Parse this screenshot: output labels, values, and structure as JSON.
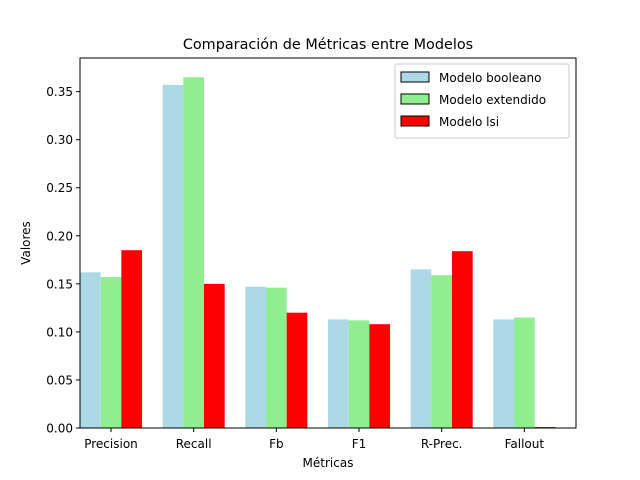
{
  "chart_data": {
    "type": "bar",
    "title": "Comparación de Métricas entre Modelos",
    "xlabel": "Métricas",
    "ylabel": "Valores",
    "categories": [
      "Precision",
      "Recall",
      "Fb",
      "F1",
      "R-Prec.",
      "Fallout"
    ],
    "ylim": [
      0,
      0.385
    ],
    "yticks": [
      0.0,
      0.05,
      0.1,
      0.15,
      0.2,
      0.25,
      0.3,
      0.35
    ],
    "ytick_labels": [
      "0.00",
      "0.05",
      "0.10",
      "0.15",
      "0.20",
      "0.25",
      "0.30",
      "0.35"
    ],
    "grid": false,
    "legend_position": "top-right",
    "series": [
      {
        "name": "Modelo booleano",
        "color": "#add8e6",
        "values": [
          0.162,
          0.357,
          0.147,
          0.113,
          0.165,
          0.113
        ]
      },
      {
        "name": "Modelo extendido",
        "color": "#90ee90",
        "values": [
          0.157,
          0.365,
          0.146,
          0.112,
          0.159,
          0.115
        ]
      },
      {
        "name": "Modelo lsi",
        "color": "#ff0000",
        "values": [
          0.185,
          0.15,
          0.12,
          0.108,
          0.184,
          0.001
        ]
      }
    ]
  }
}
